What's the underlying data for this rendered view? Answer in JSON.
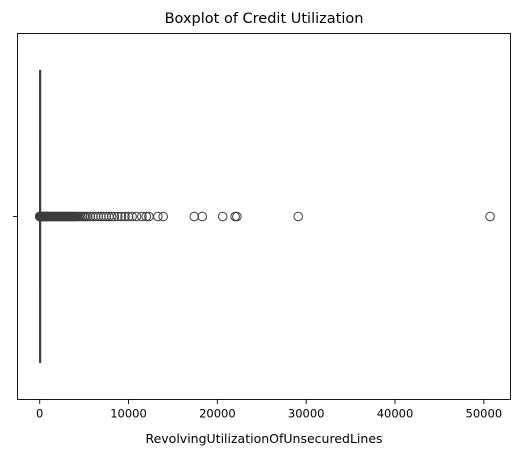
{
  "chart_data": {
    "type": "boxplot",
    "title": "Boxplot of Credit Utilization",
    "xlabel": "RevolvingUtilizationOfUnsecuredLines",
    "ylabel": "",
    "xlim": [
      -2500,
      53000
    ],
    "xticks": [
      0,
      10000,
      20000,
      30000,
      40000,
      50000
    ],
    "xtick_labels": [
      "0",
      "10000",
      "20000",
      "30000",
      "40000",
      "50000"
    ],
    "yticks": [
      ""
    ],
    "grid": false,
    "orientation": "horizontal",
    "box": {
      "q1": 0.03,
      "median": 0.15,
      "q3": 0.56,
      "whisker_low": 0,
      "whisker_high": 1.35
    },
    "outliers": [
      2,
      5,
      10,
      20,
      40,
      60,
      90,
      120,
      150,
      200,
      250,
      300,
      350,
      400,
      450,
      500,
      550,
      600,
      650,
      700,
      750,
      800,
      850,
      900,
      950,
      1000,
      1100,
      1200,
      1300,
      1400,
      1500,
      1600,
      1700,
      1800,
      1900,
      2000,
      2100,
      2200,
      2300,
      2400,
      2500,
      2600,
      2700,
      2800,
      2900,
      3000,
      3100,
      3200,
      3300,
      3400,
      3500,
      3600,
      3700,
      3800,
      3900,
      4000,
      4100,
      4200,
      4400,
      4600,
      4800,
      5000,
      5200,
      5400,
      5700,
      6000,
      6300,
      6600,
      6900,
      7200,
      7500,
      7800,
      8100,
      8400,
      8800,
      9200,
      9600,
      10000,
      10400,
      10900,
      11500,
      12000,
      12300,
      13300,
      13900,
      17400,
      18300,
      20600,
      22000,
      22200,
      29100,
      50700
    ],
    "colors": {
      "box_line": "#3d3d3d",
      "outlier_edge": "#3d3d3d",
      "axis": "#000000"
    }
  }
}
